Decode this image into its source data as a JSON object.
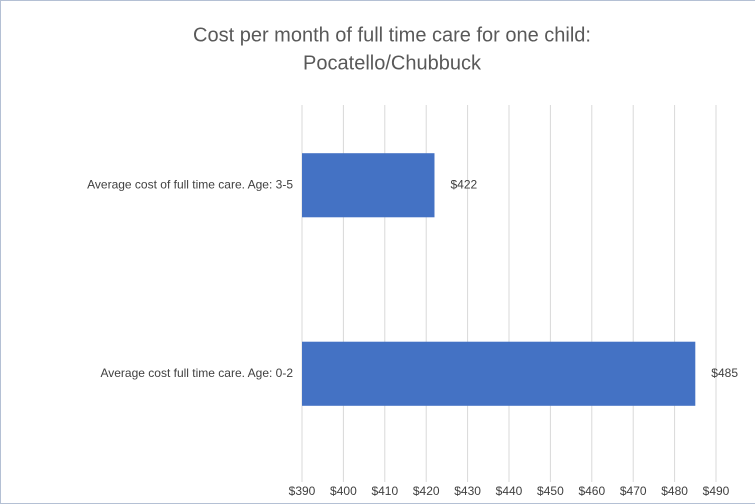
{
  "chart_data": {
    "type": "bar",
    "orientation": "horizontal",
    "title": [
      "Cost per month of full time care for one child:",
      "Pocatello/Chubbuck"
    ],
    "categories": [
      "Average cost of full time care. Age: 3-5",
      "Average cost full time care. Age: 0-2"
    ],
    "values": [
      422,
      485
    ],
    "value_labels": [
      "$422",
      "$485"
    ],
    "color": "#4472c4",
    "xlim": [
      390,
      490
    ],
    "xticks": [
      {
        "value": 390,
        "label": "$390"
      },
      {
        "value": 400,
        "label": "$400"
      },
      {
        "value": 410,
        "label": "$410"
      },
      {
        "value": 420,
        "label": "$420"
      },
      {
        "value": 430,
        "label": "$430"
      },
      {
        "value": 440,
        "label": "$440"
      },
      {
        "value": 450,
        "label": "$450"
      },
      {
        "value": 460,
        "label": "$460"
      },
      {
        "value": 470,
        "label": "$470"
      },
      {
        "value": 480,
        "label": "$480"
      },
      {
        "value": 490,
        "label": "$490"
      }
    ],
    "grid": true
  }
}
